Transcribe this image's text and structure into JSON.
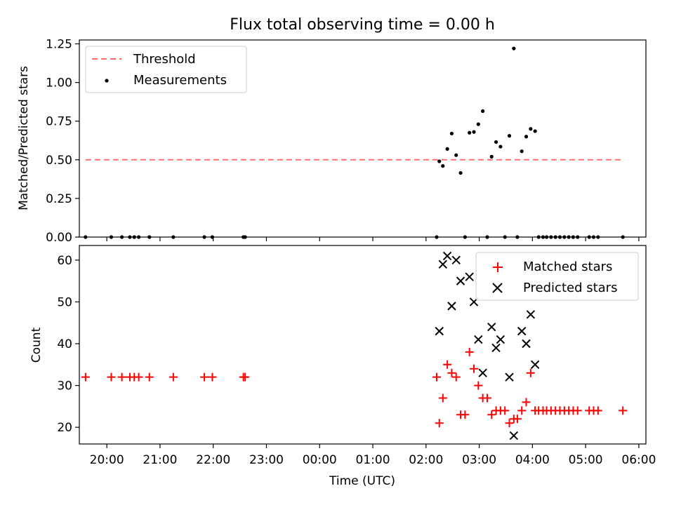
{
  "title": "Flux total observing time = 0.00 h",
  "colors": {
    "threshold": "#ff7070",
    "measurements": "#000000",
    "matched": "#ff0000",
    "predicted": "#000000"
  },
  "chart_data": [
    {
      "type": "scatter",
      "ylabel": "Matched/Predicted stars",
      "xlim": [
        "19:29",
        "06:08"
      ],
      "ylim": [
        0,
        1.275
      ],
      "yticks": [
        0.0,
        0.25,
        0.5,
        0.75,
        1.0,
        1.25
      ],
      "ytick_labels": [
        "0.00",
        "0.25",
        "0.50",
        "0.75",
        "1.00",
        "1.25"
      ],
      "legend": {
        "placement": "top-left",
        "entries": [
          "Threshold",
          "Measurements"
        ]
      },
      "threshold": {
        "name": "Threshold",
        "value": 0.5,
        "x_start": "19:36",
        "x_end": "05:42",
        "style": "dashed"
      },
      "series": [
        {
          "name": "Measurements",
          "points": [
            [
              "19:36",
              0
            ],
            [
              "20:05",
              0
            ],
            [
              "20:17",
              0
            ],
            [
              "20:26",
              0
            ],
            [
              "20:31",
              0
            ],
            [
              "20:36",
              0
            ],
            [
              "20:48",
              0
            ],
            [
              "21:15",
              0
            ],
            [
              "21:50",
              0
            ],
            [
              "21:59",
              0
            ],
            [
              "22:34",
              0
            ],
            [
              "22:36",
              0
            ],
            [
              "02:12",
              0
            ],
            [
              "02:15",
              0.49
            ],
            [
              "02:19",
              0.46
            ],
            [
              "02:24",
              0.57
            ],
            [
              "02:29",
              0.67
            ],
            [
              "02:34",
              0.53
            ],
            [
              "02:39",
              0.415
            ],
            [
              "02:44",
              0
            ],
            [
              "02:49",
              0.675
            ],
            [
              "02:54",
              0.68
            ],
            [
              "02:59",
              0.73
            ],
            [
              "03:04",
              0.815
            ],
            [
              "03:09",
              0
            ],
            [
              "03:14",
              0.52
            ],
            [
              "03:19",
              0.615
            ],
            [
              "03:24",
              0.585
            ],
            [
              "03:29",
              0
            ],
            [
              "03:34",
              0.655
            ],
            [
              "03:39",
              1.22
            ],
            [
              "03:43",
              0
            ],
            [
              "03:48",
              0.555
            ],
            [
              "03:53",
              0.65
            ],
            [
              "03:58",
              0.7
            ],
            [
              "04:03",
              0.685
            ],
            [
              "04:07",
              0
            ],
            [
              "04:12",
              0
            ],
            [
              "04:16",
              0
            ],
            [
              "04:21",
              0
            ],
            [
              "04:26",
              0
            ],
            [
              "04:31",
              0
            ],
            [
              "04:36",
              0
            ],
            [
              "04:41",
              0
            ],
            [
              "04:46",
              0
            ],
            [
              "04:51",
              0
            ],
            [
              "05:04",
              0
            ],
            [
              "05:09",
              0
            ],
            [
              "05:14",
              0
            ],
            [
              "05:42",
              0
            ]
          ]
        }
      ]
    },
    {
      "type": "scatter",
      "xlabel": "Time (UTC)",
      "ylabel": "Count",
      "xlim": [
        "19:29",
        "06:08"
      ],
      "ylim": [
        16,
        63.5
      ],
      "yticks": [
        20,
        30,
        40,
        50,
        60
      ],
      "xtick_labels": [
        "20:00",
        "21:00",
        "22:00",
        "23:00",
        "00:00",
        "01:00",
        "02:00",
        "03:00",
        "04:00",
        "05:00",
        "06:00"
      ],
      "legend": {
        "placement": "top-right",
        "entries": [
          "Matched stars",
          "Predicted stars"
        ]
      },
      "series": [
        {
          "name": "Matched stars",
          "marker": "+",
          "points": [
            [
              "19:36",
              32
            ],
            [
              "20:05",
              32
            ],
            [
              "20:17",
              32
            ],
            [
              "20:26",
              32
            ],
            [
              "20:31",
              32
            ],
            [
              "20:36",
              32
            ],
            [
              "20:48",
              32
            ],
            [
              "21:15",
              32
            ],
            [
              "21:50",
              32
            ],
            [
              "21:59",
              32
            ],
            [
              "22:34",
              32
            ],
            [
              "22:36",
              32
            ],
            [
              "02:12",
              32
            ],
            [
              "02:15",
              21
            ],
            [
              "02:19",
              27
            ],
            [
              "02:24",
              35
            ],
            [
              "02:29",
              33
            ],
            [
              "02:34",
              32
            ],
            [
              "02:39",
              23
            ],
            [
              "02:44",
              23
            ],
            [
              "02:49",
              38
            ],
            [
              "02:54",
              34
            ],
            [
              "02:59",
              30
            ],
            [
              "03:04",
              27
            ],
            [
              "03:09",
              27
            ],
            [
              "03:14",
              23
            ],
            [
              "03:19",
              24
            ],
            [
              "03:24",
              24
            ],
            [
              "03:29",
              24
            ],
            [
              "03:34",
              21
            ],
            [
              "03:39",
              22
            ],
            [
              "03:43",
              22
            ],
            [
              "03:48",
              24
            ],
            [
              "03:53",
              26
            ],
            [
              "03:58",
              33
            ],
            [
              "04:03",
              24
            ],
            [
              "04:07",
              24
            ],
            [
              "04:12",
              24
            ],
            [
              "04:16",
              24
            ],
            [
              "04:21",
              24
            ],
            [
              "04:26",
              24
            ],
            [
              "04:31",
              24
            ],
            [
              "04:36",
              24
            ],
            [
              "04:41",
              24
            ],
            [
              "04:46",
              24
            ],
            [
              "04:51",
              24
            ],
            [
              "05:04",
              24
            ],
            [
              "05:09",
              24
            ],
            [
              "05:14",
              24
            ],
            [
              "05:42",
              24
            ]
          ]
        },
        {
          "name": "Predicted stars",
          "marker": "x",
          "points": [
            [
              "02:15",
              43
            ],
            [
              "02:19",
              59
            ],
            [
              "02:24",
              61
            ],
            [
              "02:29",
              49
            ],
            [
              "02:34",
              60
            ],
            [
              "02:39",
              55
            ],
            [
              "02:49",
              56
            ],
            [
              "02:54",
              50
            ],
            [
              "02:59",
              41
            ],
            [
              "03:04",
              33
            ],
            [
              "03:14",
              44
            ],
            [
              "03:19",
              39
            ],
            [
              "03:24",
              41
            ],
            [
              "03:34",
              32
            ],
            [
              "03:39",
              18
            ],
            [
              "03:48",
              43
            ],
            [
              "03:53",
              40
            ],
            [
              "03:58",
              47
            ],
            [
              "04:03",
              35
            ]
          ]
        }
      ]
    }
  ]
}
